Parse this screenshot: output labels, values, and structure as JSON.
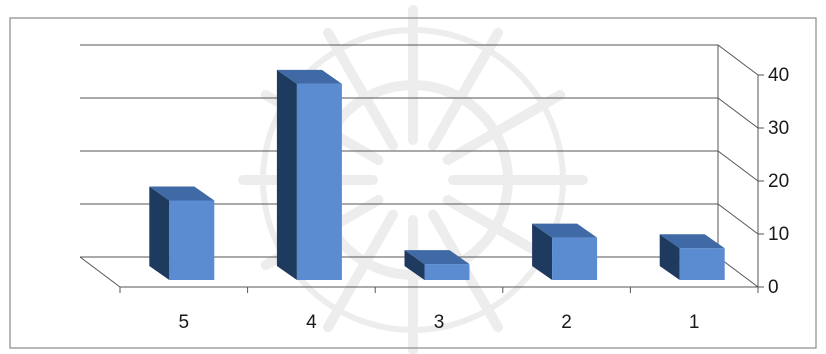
{
  "chart_data": {
    "type": "bar",
    "style": "3d-column",
    "categories": [
      "5",
      "4",
      "3",
      "2",
      "1"
    ],
    "values": [
      15,
      37,
      3,
      8,
      6
    ],
    "ylim": [
      0,
      40
    ],
    "yticks": [
      0,
      10,
      20,
      30,
      40
    ],
    "grid": true,
    "legend": "none",
    "colors": {
      "bar_front": "#5b8bd0",
      "bar_top": "#3f6aa6",
      "bar_side": "#1f3a5f",
      "gridline": "#555555",
      "plot_border": "#6b6b6b"
    }
  },
  "watermark": "decorative-star-ornament"
}
